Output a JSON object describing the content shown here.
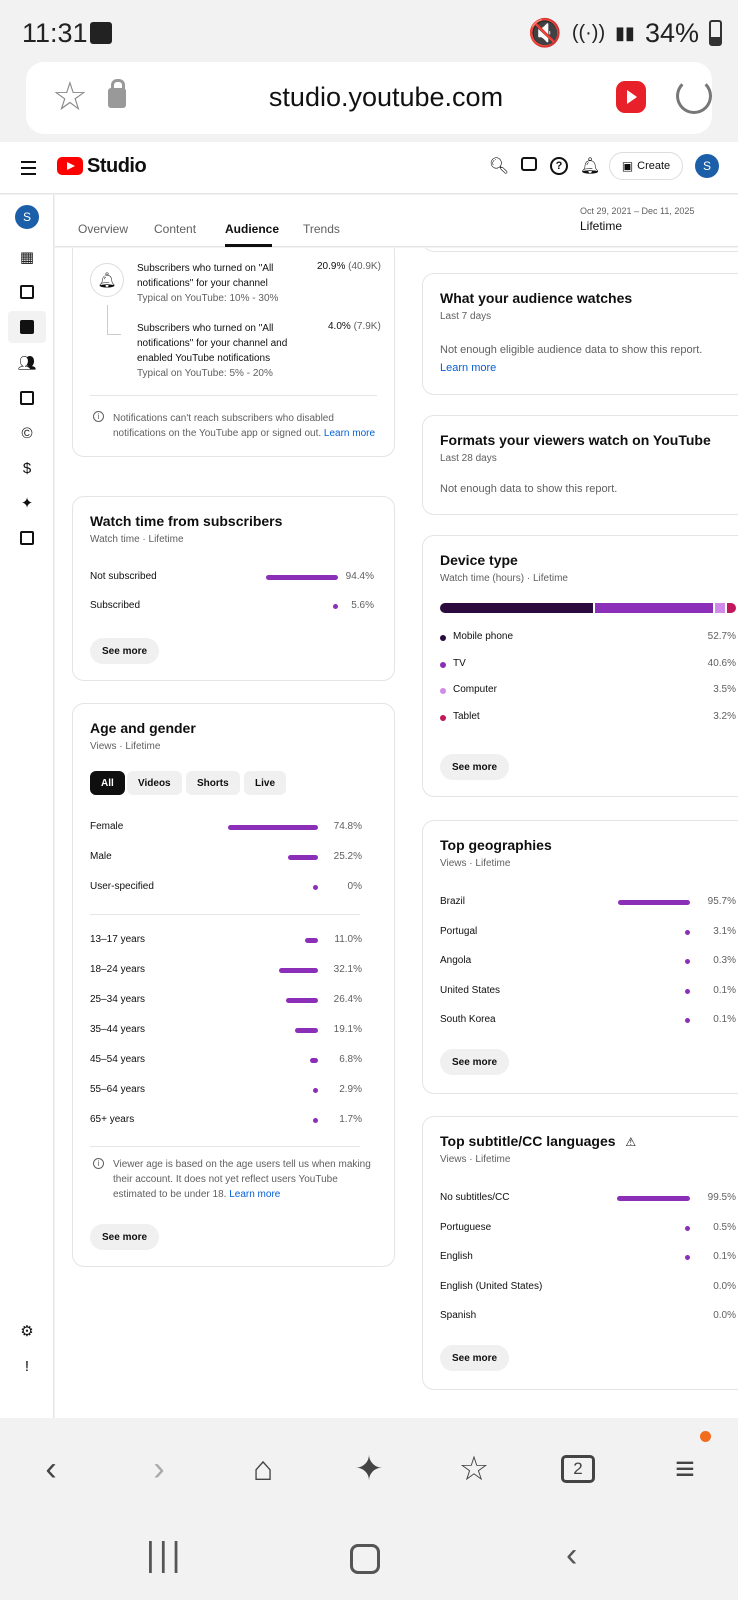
{
  "status_bar": {
    "time": "11:31",
    "battery": "34%"
  },
  "browser": {
    "url": "studio.youtube.com"
  },
  "header": {
    "logo_text": "Studio",
    "create_label": "Create",
    "avatar_letter": "S"
  },
  "sidebar": {
    "avatar_letter": "S"
  },
  "tabs": {
    "items": [
      "Overview",
      "Content",
      "Audience",
      "Trends"
    ],
    "active": "Audience",
    "date_range": "Oct 29, 2021 – Dec 11, 2025",
    "period": "Lifetime"
  },
  "notifications_card": {
    "row1_text_1": "Subscribers who turned on \"All",
    "row1_text_2": "notifications\" for your channel",
    "row1_typical": "Typical on YouTube: 10% - 30%",
    "row1_value": "20.9%",
    "row1_count": "(40.9K)",
    "row2_text_1": "Subscribers who turned on \"All",
    "row2_text_2": "notifications\" for your channel and",
    "row2_text_3": "enabled YouTube notifications",
    "row2_typical": "Typical on YouTube: 5% - 20%",
    "row2_value": "4.0%",
    "row2_count": "(7.9K)",
    "note_1": "Notifications can't reach subscribers who disabled",
    "note_2": "notifications on the YouTube app or signed out.",
    "note_link": "Learn more"
  },
  "watch_time_card": {
    "title": "Watch time from subscribers",
    "subtitle": "Watch time · Lifetime",
    "rows": [
      {
        "label": "Not subscribed",
        "value": "94.4%",
        "pct": 94.4
      },
      {
        "label": "Subscribed",
        "value": "5.6%",
        "pct": 5.6
      }
    ],
    "see_more": "See more"
  },
  "age_gender_card": {
    "title": "Age and gender",
    "subtitle": "Views · Lifetime",
    "chips": [
      "All",
      "Videos",
      "Shorts",
      "Live"
    ],
    "gender": [
      {
        "label": "Female",
        "value": "74.8%",
        "pct": 74.8
      },
      {
        "label": "Male",
        "value": "25.2%",
        "pct": 25.2
      },
      {
        "label": "User-specified",
        "value": "0%",
        "pct": 0
      }
    ],
    "ages": [
      {
        "label": "13–17 years",
        "value": "11.0%",
        "pct": 11.0
      },
      {
        "label": "18–24 years",
        "value": "32.1%",
        "pct": 32.1
      },
      {
        "label": "25–34 years",
        "value": "26.4%",
        "pct": 26.4
      },
      {
        "label": "35–44 years",
        "value": "19.1%",
        "pct": 19.1
      },
      {
        "label": "45–54 years",
        "value": "6.8%",
        "pct": 6.8
      },
      {
        "label": "55–64 years",
        "value": "2.9%",
        "pct": 2.9
      },
      {
        "label": "65+ years",
        "value": "1.7%",
        "pct": 1.7
      }
    ],
    "note_1": "Viewer age is based on the age users tell us when making",
    "note_2": "their account. It does not yet reflect users YouTube",
    "note_3": "estimated to be under 18.",
    "note_link": "Learn more",
    "see_more": "See more"
  },
  "audience_watches_card": {
    "title": "What your audience watches",
    "subtitle": "Last 7 days",
    "message": "Not enough eligible audience data to show this report.",
    "link": "Learn more"
  },
  "formats_card": {
    "title": "Formats your viewers watch on YouTube",
    "subtitle": "Last 28 days",
    "message": "Not enough data to show this report."
  },
  "device_card": {
    "title": "Device type",
    "subtitle": "Watch time (hours) · Lifetime",
    "devices": [
      {
        "label": "Mobile phone",
        "value": "52.7%",
        "pct": 52.7,
        "color": "#2b0a3d"
      },
      {
        "label": "TV",
        "value": "40.6%",
        "pct": 40.6,
        "color": "#8c2fb8"
      },
      {
        "label": "Computer",
        "value": "3.5%",
        "pct": 3.5,
        "color": "#d08ae8"
      },
      {
        "label": "Tablet",
        "value": "3.2%",
        "pct": 3.2,
        "color": "#c2185b"
      }
    ],
    "see_more": "See more"
  },
  "geo_card": {
    "title": "Top geographies",
    "subtitle": "Views · Lifetime",
    "rows": [
      {
        "label": "Brazil",
        "value": "95.7%",
        "pct": 95.7
      },
      {
        "label": "Portugal",
        "value": "3.1%",
        "pct": 3.1
      },
      {
        "label": "Angola",
        "value": "0.3%",
        "pct": 0.3
      },
      {
        "label": "United States",
        "value": "0.1%",
        "pct": 0.1
      },
      {
        "label": "South Korea",
        "value": "0.1%",
        "pct": 0.1
      }
    ],
    "see_more": "See more"
  },
  "subtitle_card": {
    "title": "Top subtitle/CC languages",
    "subtitle": "Views · Lifetime",
    "rows": [
      {
        "label": "No subtitles/CC",
        "value": "99.5%",
        "pct": 99.5
      },
      {
        "label": "Portuguese",
        "value": "0.5%",
        "pct": 0.5
      },
      {
        "label": "English",
        "value": "0.1%",
        "pct": 0.1
      },
      {
        "label": "English (United States)",
        "value": "0.0%",
        "pct": 0
      },
      {
        "label": "Spanish",
        "value": "0.0%",
        "pct": 0
      }
    ],
    "see_more": "See more"
  },
  "bottom_nav": {
    "tab_count": "2"
  },
  "colors": {
    "accent": "#8c2fb8",
    "brand_red": "#ff0000",
    "link": "#065fd4"
  }
}
